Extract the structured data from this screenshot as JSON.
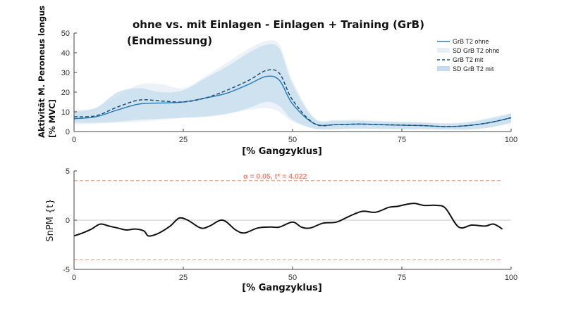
{
  "chart_data": [
    {
      "type": "line",
      "title": [
        "ohne vs. mit Einlagen - Einlagen + Training (GrB)",
        "(Endmessung)"
      ],
      "xlabel": "[% Gangzyklus]",
      "ylabel": [
        "Aktivität M. Peroneus longus",
        "[% MVC]"
      ],
      "xlim": [
        0,
        100
      ],
      "ylim": [
        0,
        50
      ],
      "xticks": [
        "0",
        "25",
        "50",
        "75",
        "100"
      ],
      "yticks": [
        "0",
        "10",
        "20",
        "30",
        "40",
        "50"
      ],
      "legend_position": "top-right",
      "x": [
        0,
        5,
        10,
        15,
        20,
        25,
        30,
        35,
        40,
        44,
        47,
        50,
        55,
        60,
        65,
        70,
        75,
        80,
        85,
        90,
        95,
        100
      ],
      "series": [
        {
          "name": "GrB T2 ohne",
          "style": "solid",
          "color": "#2f7fb8",
          "values": [
            6.5,
            7.5,
            11,
            14,
            14.5,
            15,
            17,
            19.5,
            24,
            28,
            26,
            14,
            4,
            3.5,
            3.8,
            3.5,
            3.2,
            3,
            2.5,
            3,
            4.5,
            7
          ]
        },
        {
          "name": "SD GrB T2 ohne",
          "style": "band",
          "color": "#e6eef6",
          "lower": [
            3.5,
            4,
            4.5,
            5,
            6,
            7,
            8,
            9,
            11,
            12,
            10,
            5,
            1.5,
            1.2,
            1.5,
            1.3,
            1.2,
            1.2,
            1,
            1,
            2,
            4
          ],
          "upper": [
            10,
            12,
            18,
            24,
            24,
            22,
            28,
            35,
            42,
            46,
            44,
            26,
            7,
            6,
            6,
            5.5,
            5,
            4.8,
            4.2,
            5,
            7,
            9.5
          ]
        },
        {
          "name": "GrB T2 mit",
          "style": "dashed",
          "color": "#1f4e79",
          "values": [
            7.5,
            8,
            12.5,
            16,
            15.5,
            15,
            17,
            21,
            26,
            31,
            29.5,
            16,
            4,
            3.5,
            3.8,
            3.5,
            3.3,
            3,
            2.5,
            3,
            4.5,
            7
          ]
        },
        {
          "name": "SD GrB T2 mit",
          "style": "band",
          "color": "#c6dcee",
          "lower": [
            4.5,
            4.5,
            5,
            6,
            6.5,
            7,
            7.5,
            9,
            12,
            15,
            13,
            6,
            1.5,
            1.2,
            1.5,
            1.3,
            1.2,
            1.2,
            1,
            1,
            2,
            4.5
          ],
          "upper": [
            10.5,
            12,
            20,
            22,
            20,
            21,
            27,
            33,
            40,
            44,
            42,
            24,
            6.5,
            5.5,
            5.5,
            5,
            4.8,
            4.5,
            4,
            4.5,
            6.5,
            9
          ]
        }
      ]
    },
    {
      "type": "line",
      "xlabel": "[% Gangzyklus]",
      "ylabel": "SnPM {t}",
      "xlim": [
        0,
        100
      ],
      "ylim": [
        -5,
        5
      ],
      "xticks": [
        "0",
        "25",
        "50",
        "75",
        "100"
      ],
      "yticks": [
        "5",
        "0",
        "-5"
      ],
      "threshold_label": "α = 0.05, t* = 4.022",
      "threshold": 4.022,
      "x": [
        0,
        2,
        4,
        6,
        8,
        10,
        12,
        14,
        16,
        17,
        19,
        22,
        24,
        26,
        29,
        31,
        34,
        37,
        39,
        42,
        45,
        47,
        50,
        52,
        54,
        57,
        60,
        63,
        66,
        69,
        72,
        74,
        76,
        78,
        80,
        83,
        85,
        88,
        91,
        94,
        96,
        98
      ],
      "series": [
        {
          "name": "",
          "color": "#111111",
          "values": [
            -1.6,
            -1.3,
            -0.9,
            -0.4,
            -0.6,
            -0.8,
            -1.0,
            -0.9,
            -1.1,
            -1.6,
            -1.4,
            -0.6,
            0.2,
            0.0,
            -0.8,
            -0.6,
            0.0,
            -1.0,
            -1.3,
            -0.8,
            -0.7,
            -0.7,
            -0.2,
            -0.7,
            -0.8,
            -0.3,
            -0.2,
            0.4,
            0.9,
            0.8,
            1.3,
            1.4,
            1.6,
            1.7,
            1.5,
            1.5,
            1.2,
            -0.7,
            -0.5,
            -0.6,
            -0.4,
            -0.9
          ]
        }
      ]
    }
  ]
}
